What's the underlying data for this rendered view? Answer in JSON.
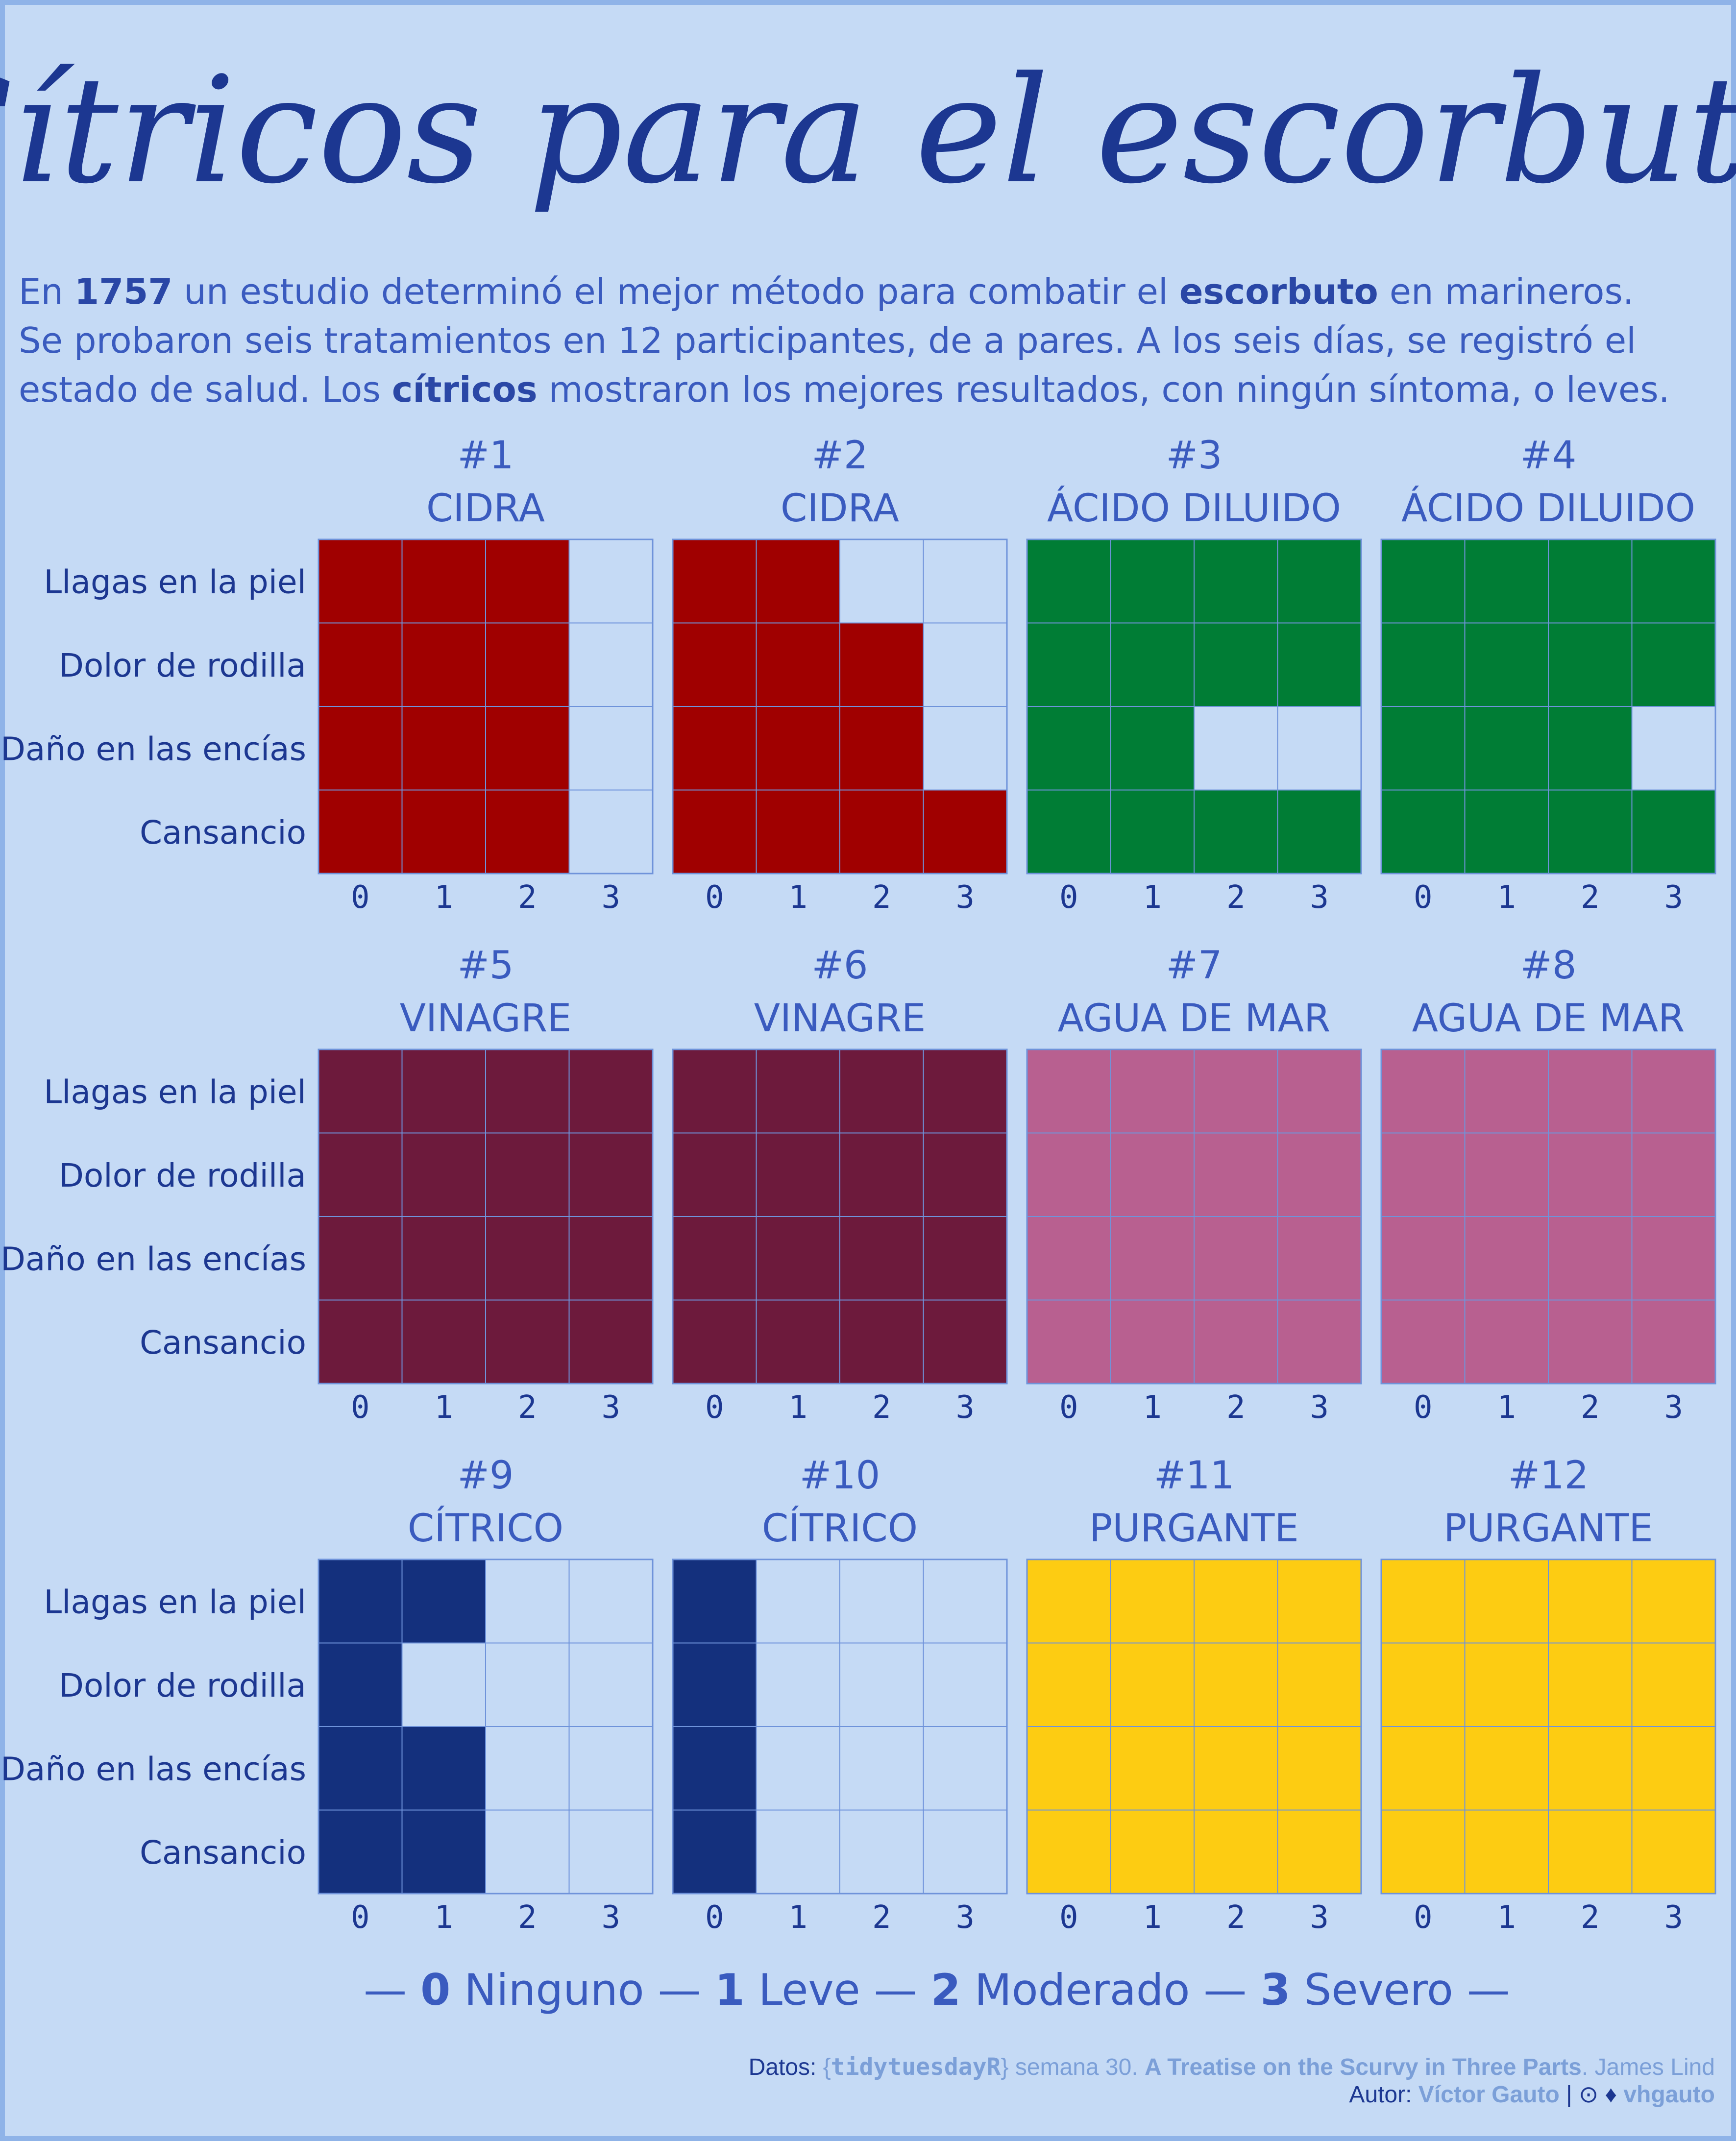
{
  "title": "Cítricos para el escorbuto",
  "subtitle_lines": [
    [
      {
        "t": "En ",
        "b": false
      },
      {
        "t": "1757",
        "b": true
      },
      {
        "t": " un estudio determinó el mejor método para combatir el ",
        "b": false
      },
      {
        "t": "escorbuto",
        "b": true
      },
      {
        "t": " en marineros.",
        "b": false
      }
    ],
    [
      {
        "t": "Se probaron seis tratamientos en 12 participantes, de a pares. A los seis días, se registró el",
        "b": false
      }
    ],
    [
      {
        "t": "estado de salud. Los ",
        "b": false
      },
      {
        "t": "cítricos",
        "b": true
      },
      {
        "t": " mostraron los mejores resultados, con ningún síntoma, o leves.",
        "b": false
      }
    ]
  ],
  "chart_data": {
    "type": "heatmap",
    "x_ticks": [
      "0",
      "1",
      "2",
      "3"
    ],
    "row_labels": [
      "Llagas en la piel",
      "Dolor de rodilla",
      "Daño en las encías",
      "Cansancio"
    ],
    "empty_color": "#c5daf5",
    "grid_color": "#6f93da",
    "panels": [
      {
        "num": "#1",
        "name": "CIDRA",
        "color": "#a00000",
        "values": [
          2,
          2,
          2,
          2
        ]
      },
      {
        "num": "#2",
        "name": "CIDRA",
        "color": "#a00000",
        "values": [
          1,
          2,
          2,
          3
        ]
      },
      {
        "num": "#3",
        "name": "ÁCIDO DILUIDO",
        "color": "#007d35",
        "values": [
          3,
          3,
          1,
          3
        ]
      },
      {
        "num": "#4",
        "name": "ÁCIDO DILUIDO",
        "color": "#007d35",
        "values": [
          3,
          3,
          2,
          3
        ]
      },
      {
        "num": "#5",
        "name": "VINAGRE",
        "color": "#6d1a3c",
        "values": [
          3,
          3,
          3,
          3
        ]
      },
      {
        "num": "#6",
        "name": "VINAGRE",
        "color": "#6d1a3c",
        "values": [
          3,
          3,
          3,
          3
        ]
      },
      {
        "num": "#7",
        "name": "AGUA DE MAR",
        "color": "#b86090",
        "values": [
          3,
          3,
          3,
          3
        ]
      },
      {
        "num": "#8",
        "name": "AGUA DE MAR",
        "color": "#b86090",
        "values": [
          3,
          3,
          3,
          3
        ]
      },
      {
        "num": "#9",
        "name": "CÍTRICO",
        "color": "#14307d",
        "values": [
          1,
          0,
          1,
          1
        ]
      },
      {
        "num": "#10",
        "name": "CÍTRICO",
        "color": "#14307d",
        "values": [
          0,
          0,
          0,
          0
        ]
      },
      {
        "num": "#11",
        "name": "PURGANTE",
        "color": "#fdcc12",
        "values": [
          3,
          3,
          3,
          3
        ]
      },
      {
        "num": "#12",
        "name": "PURGANTE",
        "color": "#fdcc12",
        "values": [
          3,
          3,
          3,
          3
        ]
      }
    ]
  },
  "legend": {
    "dash": "—",
    "items": [
      {
        "value": "0",
        "label": "Ninguno"
      },
      {
        "value": "1",
        "label": "Leve"
      },
      {
        "value": "2",
        "label": "Moderado"
      },
      {
        "value": "3",
        "label": "Severo"
      }
    ]
  },
  "caption": {
    "line1": [
      {
        "t": "Datos: ",
        "s": "plain"
      },
      {
        "t": "{",
        "s": "light"
      },
      {
        "t": "tidytuesdayR",
        "s": "mono"
      },
      {
        "t": "}",
        "s": "light"
      },
      {
        "t": " semana 30. ",
        "s": "light"
      },
      {
        "t": "A Treatise on the Scurvy in Three Parts",
        "s": "bold-light"
      },
      {
        "t": ". James Lind",
        "s": "light"
      }
    ],
    "line2": [
      {
        "t": "Autor: ",
        "s": "plain"
      },
      {
        "t": "Víctor Gauto",
        "s": "bold-light"
      },
      {
        "t": "  |  ",
        "s": "plain"
      },
      {
        "t": "⊙ ♦",
        "s": "plain"
      },
      {
        "t": "  vhgauto",
        "s": "bold-light"
      }
    ]
  }
}
